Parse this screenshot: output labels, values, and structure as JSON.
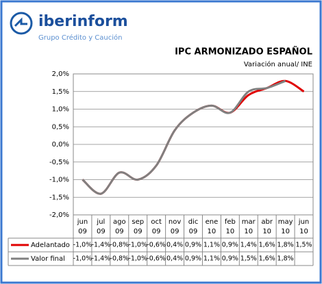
{
  "header": {
    "brand": "iberinform",
    "tagline": "Grupo Crédito y Caución"
  },
  "chart_data": {
    "type": "line",
    "title": "IPC ARMONIZADO ESPAÑOL",
    "subtitle": "Variación anual/ INE",
    "categories": [
      [
        "jun",
        "09"
      ],
      [
        "jul",
        "09"
      ],
      [
        "ago",
        "09"
      ],
      [
        "sep",
        "09"
      ],
      [
        "oct",
        "09"
      ],
      [
        "nov",
        "09"
      ],
      [
        "dic",
        "09"
      ],
      [
        "ene",
        "10"
      ],
      [
        "feb",
        "10"
      ],
      [
        "mar",
        "10"
      ],
      [
        "abr",
        "10"
      ],
      [
        "may",
        "10"
      ],
      [
        "jun",
        "10"
      ]
    ],
    "ylim": [
      -2.0,
      2.0
    ],
    "yticks": [
      {
        "value": -2.0,
        "label": "-2,0%"
      },
      {
        "value": -1.5,
        "label": "-1,5%"
      },
      {
        "value": -1.0,
        "label": "-1,0%"
      },
      {
        "value": -0.5,
        "label": "-0,5%"
      },
      {
        "value": 0.0,
        "label": "0,0%"
      },
      {
        "value": 0.5,
        "label": "0,5%"
      },
      {
        "value": 1.0,
        "label": "1,0%"
      },
      {
        "value": 1.5,
        "label": "1,5%"
      },
      {
        "value": 2.0,
        "label": "2,0%"
      }
    ],
    "grid": true,
    "series": [
      {
        "name": "Adelantado",
        "color": "#e00000",
        "values": [
          -1.0,
          -1.4,
          -0.8,
          -1.0,
          -0.6,
          0.4,
          0.9,
          1.1,
          0.9,
          1.4,
          1.6,
          1.8,
          1.5
        ],
        "value_labels": [
          "-1,0%",
          "-1,4%",
          "-0,8%",
          "-1,0%",
          "-0,6%",
          "0,4%",
          "0,9%",
          "1,1%",
          "0,9%",
          "1,4%",
          "1,6%",
          "1,8%",
          "1,5%"
        ]
      },
      {
        "name": "Valor final",
        "color": "#808080",
        "values": [
          -1.0,
          -1.4,
          -0.8,
          -1.0,
          -0.6,
          0.4,
          0.9,
          1.1,
          0.9,
          1.5,
          1.6,
          1.8,
          null
        ],
        "value_labels": [
          "-1,0%",
          "-1,4%",
          "-0,8%",
          "-1,0%",
          "-0,6%",
          "0,4%",
          "0,9%",
          "1,1%",
          "0,9%",
          "1,5%",
          "1,6%",
          "1,8%",
          null
        ]
      }
    ]
  }
}
